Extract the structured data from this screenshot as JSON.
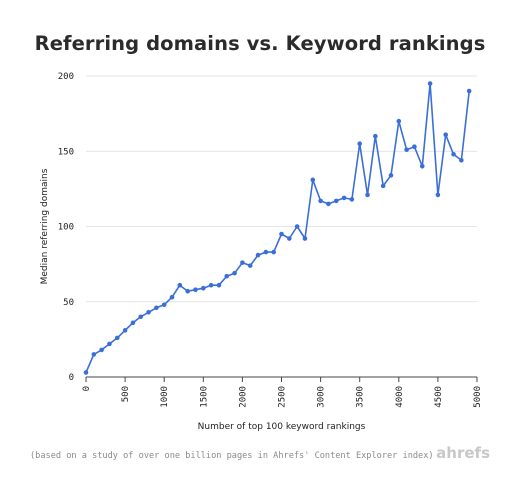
{
  "chart_data": {
    "type": "line",
    "title": "Referring domains vs. Keyword rankings",
    "xlabel": "Number of top 100 keyword rankings",
    "ylabel": "Median referring domains",
    "xlim": [
      0,
      5000
    ],
    "ylim": [
      0,
      200
    ],
    "xticks": [
      0,
      500,
      1000,
      1500,
      2000,
      2500,
      3000,
      3500,
      4000,
      4500,
      5000
    ],
    "yticks": [
      0,
      50,
      100,
      150,
      200
    ],
    "grid": "horizontal",
    "color": "#3b6fd8",
    "x": [
      0,
      100,
      200,
      300,
      400,
      500,
      600,
      700,
      800,
      900,
      1000,
      1100,
      1200,
      1300,
      1400,
      1500,
      1600,
      1700,
      1800,
      1900,
      2000,
      2100,
      2200,
      2300,
      2400,
      2500,
      2600,
      2700,
      2800,
      2900,
      3000,
      3100,
      3200,
      3300,
      3400,
      3500,
      3600,
      3700,
      3800,
      3900,
      4000,
      4100,
      4200,
      4300,
      4400,
      4500,
      4600,
      4700,
      4800,
      4900
    ],
    "y": [
      3,
      15,
      18,
      22,
      26,
      31,
      36,
      40,
      43,
      46,
      48,
      53,
      61,
      57,
      58,
      59,
      61,
      61,
      67,
      69,
      76,
      74,
      81,
      83,
      83,
      95,
      92,
      100,
      92,
      131,
      117,
      115,
      117,
      119,
      118,
      155,
      121,
      160,
      127,
      134,
      170,
      151,
      153,
      140,
      195,
      121,
      161,
      148,
      144,
      190
    ]
  },
  "footnote": "(based on a study of over one billion pages in Ahrefs' Content Explorer index)",
  "brand": "ahrefs"
}
